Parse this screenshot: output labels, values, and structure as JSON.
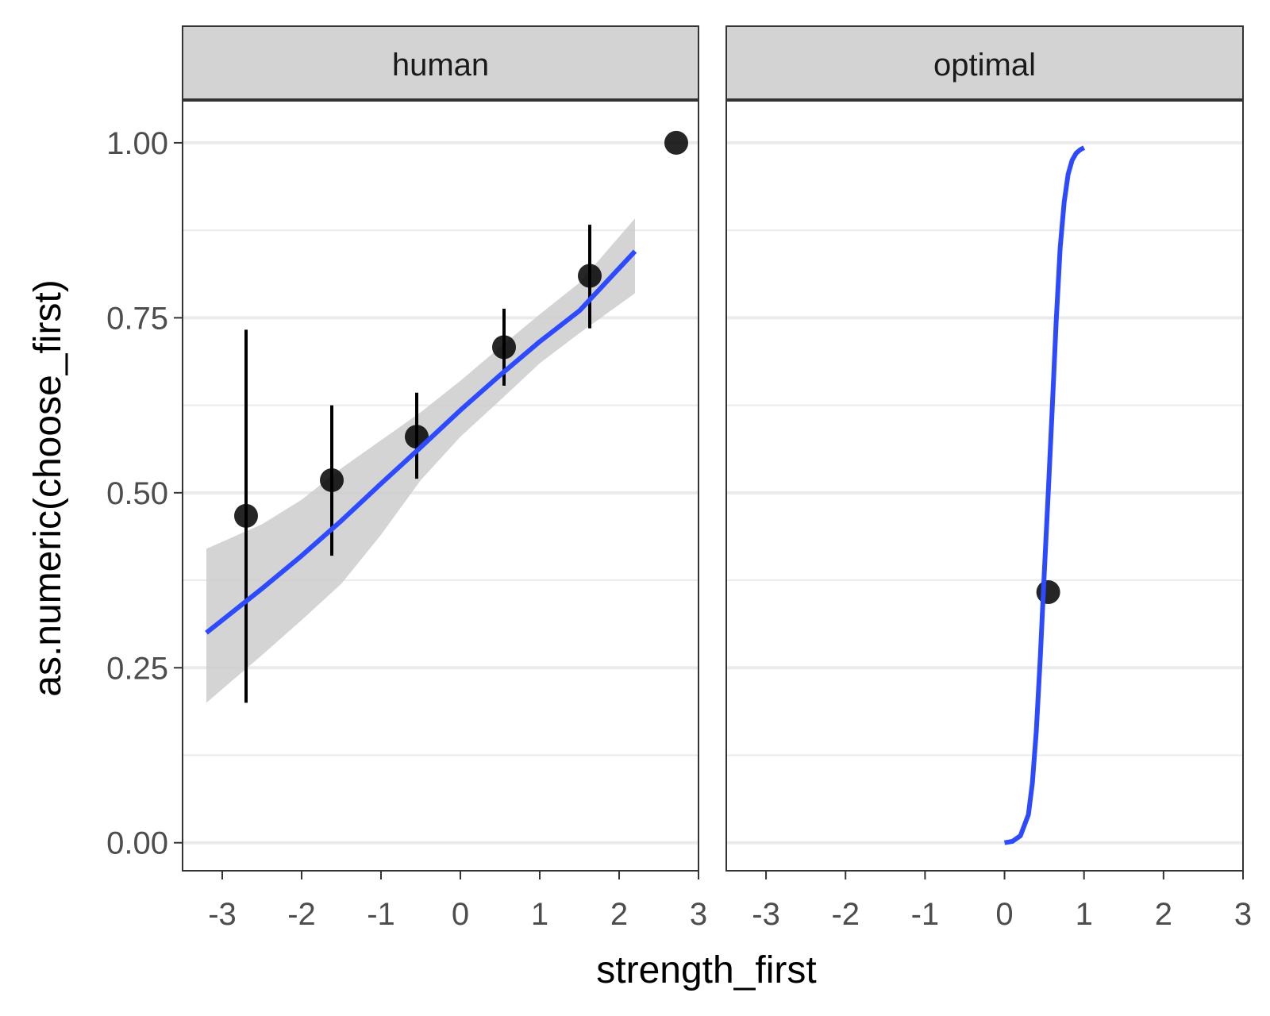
{
  "chart_data": {
    "type": "scatter",
    "xlabel": "strength_first",
    "ylabel": "as.numeric(choose_first)",
    "xlim": [
      -3.5,
      3.0
    ],
    "ylim": [
      -0.04,
      1.06
    ],
    "x_ticks": [
      -3,
      -2,
      -1,
      0,
      1,
      2,
      3
    ],
    "x_tick_labels": [
      "-3",
      "-2",
      "-1",
      "0",
      "1",
      "2",
      "3"
    ],
    "y_ticks": [
      0,
      0.25,
      0.5,
      0.75,
      1.0
    ],
    "y_tick_labels": [
      "0.00",
      "0.25",
      "0.50",
      "0.75",
      "1.00"
    ],
    "grid": true,
    "colors": {
      "strip_fill": "#d3d3d3",
      "grid": "#ebebeb",
      "border": "#333333",
      "ribbon": "#cccccc",
      "line": "#2d4aff",
      "point": "#000000",
      "text": "#4d4d4d"
    },
    "panels": [
      {
        "strip": "human",
        "points": [
          {
            "x": -2.7,
            "y": 0.467,
            "ymin": 0.2,
            "ymax": 0.733
          },
          {
            "x": -1.62,
            "y": 0.518,
            "ymin": 0.41,
            "ymax": 0.625
          },
          {
            "x": -0.55,
            "y": 0.58,
            "ymin": 0.52,
            "ymax": 0.643
          },
          {
            "x": 0.55,
            "y": 0.708,
            "ymin": 0.653,
            "ymax": 0.763
          },
          {
            "x": 1.63,
            "y": 0.81,
            "ymin": 0.735,
            "ymax": 0.883
          },
          {
            "x": 2.72,
            "y": 1.0
          }
        ],
        "fit": {
          "x": [
            -3.2,
            -2.5,
            -2.0,
            -1.5,
            -1.0,
            -0.5,
            0.0,
            0.5,
            1.0,
            1.5,
            2.2
          ],
          "y": [
            0.3,
            0.363,
            0.41,
            0.46,
            0.513,
            0.565,
            0.618,
            0.668,
            0.716,
            0.76,
            0.845
          ],
          "ymin": [
            0.2,
            0.268,
            0.318,
            0.37,
            0.44,
            0.518,
            0.58,
            0.632,
            0.685,
            0.728,
            0.785
          ],
          "ymax": [
            0.42,
            0.455,
            0.49,
            0.535,
            0.575,
            0.615,
            0.66,
            0.708,
            0.755,
            0.8,
            0.892
          ]
        }
      },
      {
        "strip": "optimal",
        "points": [
          {
            "x": 0.55,
            "y": 0.358
          }
        ],
        "fit": {
          "x": [
            0.0,
            0.1,
            0.2,
            0.3,
            0.35,
            0.4,
            0.45,
            0.5,
            0.55,
            0.6,
            0.65,
            0.7,
            0.75,
            0.8,
            0.85,
            0.9,
            0.95,
            1.0
          ],
          "y": [
            0.0,
            0.002,
            0.01,
            0.04,
            0.085,
            0.16,
            0.265,
            0.385,
            0.5,
            0.62,
            0.745,
            0.85,
            0.915,
            0.955,
            0.975,
            0.985,
            0.99,
            0.993
          ]
        }
      }
    ]
  }
}
